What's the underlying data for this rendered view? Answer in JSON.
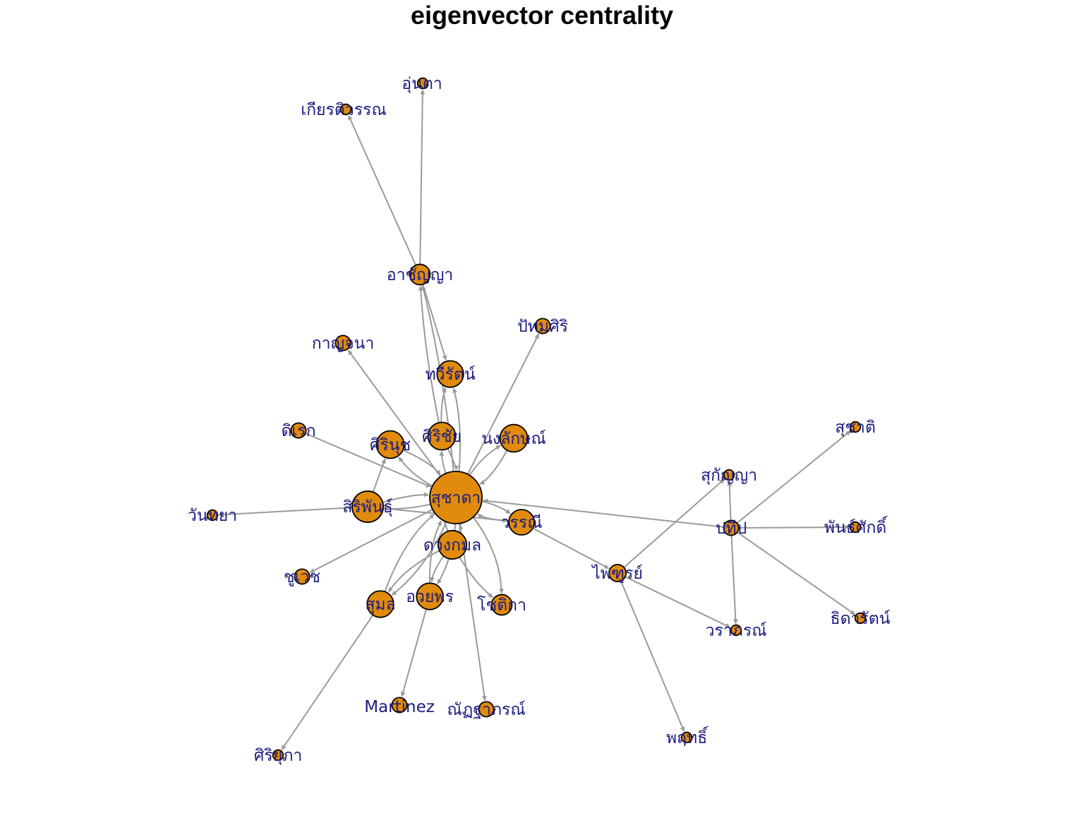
{
  "title": "eigenvector centrality",
  "colors": {
    "edge": "#9a9a9a",
    "node_fill": "#e08b0b",
    "node_stroke": "#000000",
    "label": "#1a1a80"
  },
  "nodes": [
    {
      "id": "suchada",
      "label": "สุชาดา",
      "centrality": 1.0
    },
    {
      "id": "sirichai",
      "label": "ศิริชัย",
      "centrality": 0.22
    },
    {
      "id": "thawirat",
      "label": "ทวีรัตน์",
      "centrality": 0.2
    },
    {
      "id": "siriphan",
      "label": "สิริพันธุ์",
      "centrality": 0.3
    },
    {
      "id": "sirinat",
      "label": "ศิรินุช",
      "centrality": 0.22
    },
    {
      "id": "nonglak",
      "label": "นงลักษณ์",
      "centrality": 0.22
    },
    {
      "id": "wanni",
      "label": "วรรณี",
      "centrality": 0.18
    },
    {
      "id": "duangkamon",
      "label": "ดวงกมล",
      "centrality": 0.24
    },
    {
      "id": "aiyaphon",
      "label": "อวยพร",
      "centrality": 0.2
    },
    {
      "id": "sumon",
      "label": "สุมล",
      "centrality": 0.2
    },
    {
      "id": "chotika",
      "label": "โชติกา",
      "centrality": 0.1
    },
    {
      "id": "achanya",
      "label": "อาชัญญา",
      "centrality": 0.1
    },
    {
      "id": "untha",
      "label": "อุ่นตา",
      "centrality": 0.01
    },
    {
      "id": "kiatiwan",
      "label": "เกียรติวรรณ",
      "centrality": 0.01
    },
    {
      "id": "kanchana",
      "label": "กาญจนา",
      "centrality": 0.04
    },
    {
      "id": "pathomsiri",
      "label": "ปัทมศิริ",
      "centrality": 0.04
    },
    {
      "id": "direk",
      "label": "ดิเรก",
      "centrality": 0.04
    },
    {
      "id": "wanthaya",
      "label": "วันทยา",
      "centrality": 0.01
    },
    {
      "id": "chuwet",
      "label": "ชูเวช",
      "centrality": 0.04
    },
    {
      "id": "martinez",
      "label": "Martinez",
      "centrality": 0.04
    },
    {
      "id": "natthaporn",
      "label": "ณัฏฐาภรณ์",
      "centrality": 0.04
    },
    {
      "id": "siriphupha",
      "label": "ศิริยุภา",
      "centrality": 0.01
    },
    {
      "id": "phaithun",
      "label": "ไพฑูรย์",
      "centrality": 0.06
    },
    {
      "id": "prathip",
      "label": "ปทีป",
      "centrality": 0.04
    },
    {
      "id": "sukanya",
      "label": "สุกัญญา",
      "centrality": 0.01
    },
    {
      "id": "suchati",
      "label": "สุชาติ",
      "centrality": 0.01
    },
    {
      "id": "phansak",
      "label": "พันธ์ศักดิ์",
      "centrality": 0.01
    },
    {
      "id": "thidarat",
      "label": "ธิดารัตน์",
      "centrality": 0.01
    },
    {
      "id": "waraphon",
      "label": "วราภรณ์",
      "centrality": 0.01
    },
    {
      "id": "pruetthi",
      "label": "พฤทธิ์",
      "centrality": 0.01
    }
  ],
  "edges": [
    {
      "from": "suchada",
      "to": "achanya"
    },
    {
      "from": "sirichai",
      "to": "achanya"
    },
    {
      "from": "achanya",
      "to": "untha"
    },
    {
      "from": "achanya",
      "to": "kiatiwan"
    },
    {
      "from": "achanya",
      "to": "thawirat"
    },
    {
      "from": "suchada",
      "to": "thawirat"
    },
    {
      "from": "sirichai",
      "to": "thawirat"
    },
    {
      "from": "suchada",
      "to": "kanchana"
    },
    {
      "from": "suchada",
      "to": "pathomsiri"
    },
    {
      "from": "suchada",
      "to": "sirichai"
    },
    {
      "from": "sirichai",
      "to": "suchada"
    },
    {
      "from": "suchada",
      "to": "sirinat"
    },
    {
      "from": "sirinat",
      "to": "suchada"
    },
    {
      "from": "suchada",
      "to": "nonglak"
    },
    {
      "from": "nonglak",
      "to": "suchada"
    },
    {
      "from": "siriphan",
      "to": "sirinat"
    },
    {
      "from": "direk",
      "to": "suchada"
    },
    {
      "from": "siriphan",
      "to": "suchada"
    },
    {
      "from": "suchada",
      "to": "siriphan"
    },
    {
      "from": "siriphan",
      "to": "wanthaya"
    },
    {
      "from": "siriphan",
      "to": "wanni"
    },
    {
      "from": "suchada",
      "to": "chuwet"
    },
    {
      "from": "suchada",
      "to": "wanni"
    },
    {
      "from": "wanni",
      "to": "suchada"
    },
    {
      "from": "prathip",
      "to": "suchada"
    },
    {
      "from": "wanni",
      "to": "phaithun"
    },
    {
      "from": "suchada",
      "to": "duangkamon"
    },
    {
      "from": "duangkamon",
      "to": "suchada"
    },
    {
      "from": "suchada",
      "to": "sumon"
    },
    {
      "from": "sumon",
      "to": "suchada"
    },
    {
      "from": "suchada",
      "to": "aiyaphon"
    },
    {
      "from": "aiyaphon",
      "to": "suchada"
    },
    {
      "from": "duangkamon",
      "to": "aiyaphon"
    },
    {
      "from": "duangkamon",
      "to": "sumon"
    },
    {
      "from": "suchada",
      "to": "chotika"
    },
    {
      "from": "duangkamon",
      "to": "chotika"
    },
    {
      "from": "suchada",
      "to": "natthaporn"
    },
    {
      "from": "aiyaphon",
      "to": "martinez"
    },
    {
      "from": "sumon",
      "to": "siriphupha"
    },
    {
      "from": "phaithun",
      "to": "sukanya"
    },
    {
      "from": "phaithun",
      "to": "waraphon"
    },
    {
      "from": "phaithun",
      "to": "pruetthi"
    },
    {
      "from": "prathip",
      "to": "sukanya"
    },
    {
      "from": "prathip",
      "to": "suchati"
    },
    {
      "from": "prathip",
      "to": "phansak"
    },
    {
      "from": "prathip",
      "to": "thidarat"
    },
    {
      "from": "prathip",
      "to": "waraphon"
    }
  ]
}
